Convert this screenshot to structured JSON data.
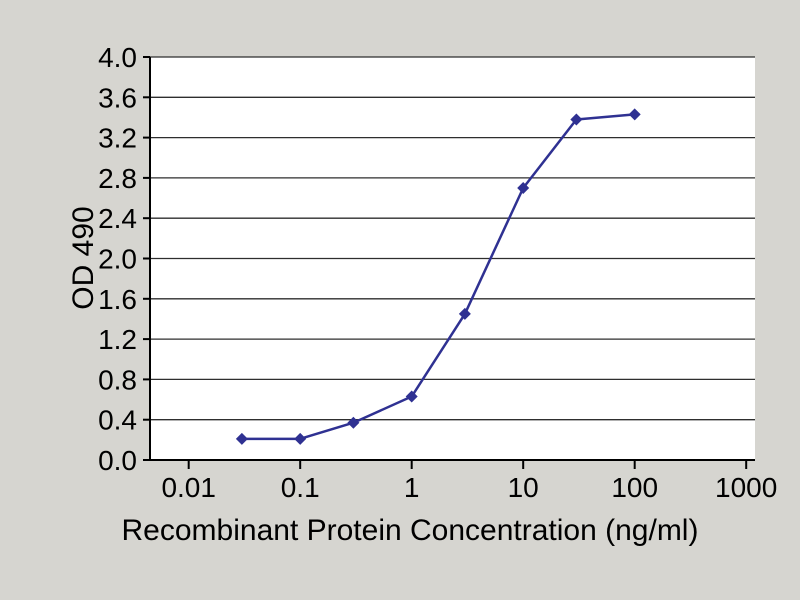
{
  "colors": {
    "background": "#d6d5d0",
    "plot_background": "#ffffff",
    "grid": "#2e2e2e",
    "axis": "#000000",
    "series": "#2f3192"
  },
  "chart_data": {
    "type": "line",
    "title": "",
    "xlabel": "Recombinant Protein Concentration (ng/ml)",
    "ylabel": "OD 490",
    "x_scale": "log",
    "xlim": [
      0.01,
      1000
    ],
    "ylim": [
      0.0,
      4.0
    ],
    "x_ticks": [
      0.01,
      0.1,
      1,
      10,
      100,
      1000
    ],
    "x_tick_labels": [
      "0.01",
      "0.1",
      "1",
      "10",
      "100",
      "1000"
    ],
    "y_tick_interval": 0.4,
    "y_tick_labels": [
      "0.0",
      "0.4",
      "0.8",
      "1.2",
      "1.6",
      "2.0",
      "2.4",
      "2.8",
      "3.2",
      "3.6",
      "4.0"
    ],
    "grid": "horizontal",
    "legend": "none",
    "series": [
      {
        "name": "OD 490",
        "color": "#2f3192",
        "marker": "diamond",
        "points": [
          {
            "x": 0.03,
            "y": 0.21
          },
          {
            "x": 0.1,
            "y": 0.21
          },
          {
            "x": 0.3,
            "y": 0.37
          },
          {
            "x": 1,
            "y": 0.63
          },
          {
            "x": 3,
            "y": 1.45
          },
          {
            "x": 10,
            "y": 2.7
          },
          {
            "x": 30,
            "y": 3.38
          },
          {
            "x": 100,
            "y": 3.43
          }
        ]
      }
    ]
  }
}
